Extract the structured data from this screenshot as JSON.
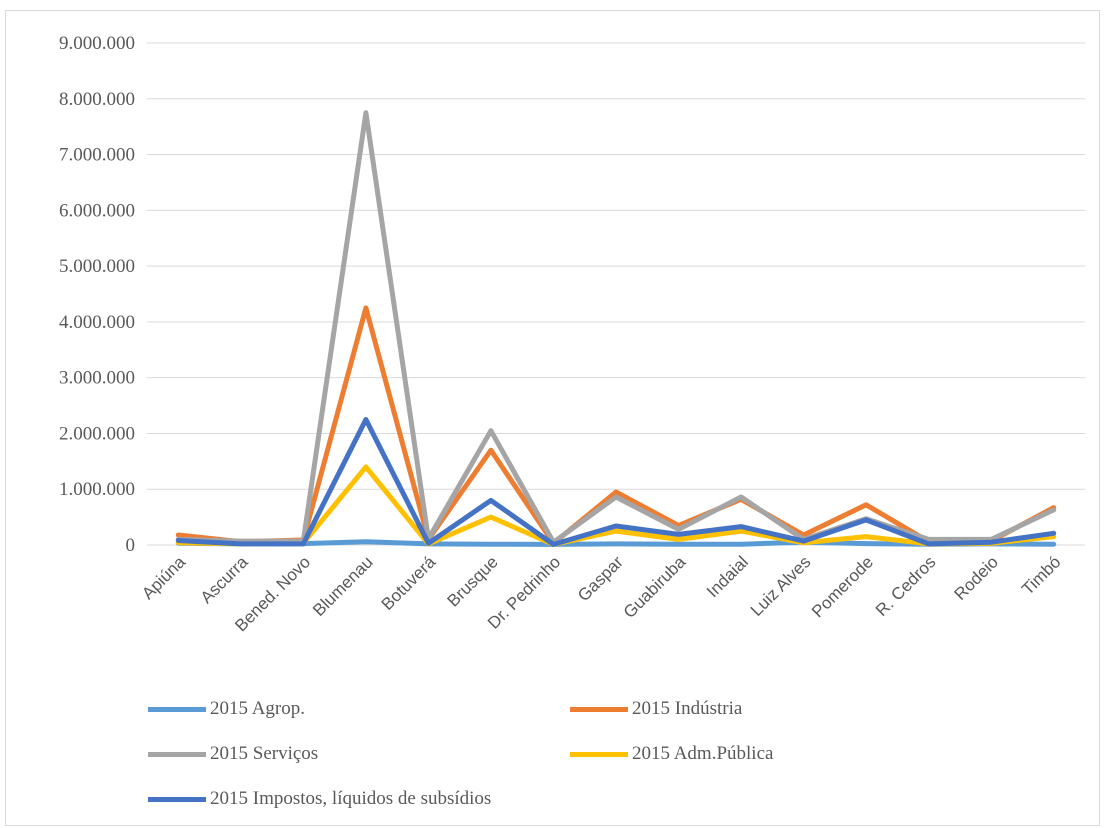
{
  "chart_data": {
    "type": "line",
    "categories": [
      "Apiúna",
      "Ascurra",
      "Bened. Novo",
      "Blumenau",
      "Botuverá",
      "Brusque",
      "Dr. Pedrinho",
      "Gaspar",
      "Guabiruba",
      "Indaial",
      "Luiz Alves",
      "Pomerode",
      "R. Cedros",
      "Rodeio",
      "Timbó"
    ],
    "ylim": [
      0,
      9000000
    ],
    "yticks": [
      0,
      1000000,
      2000000,
      3000000,
      4000000,
      5000000,
      6000000,
      7000000,
      8000000,
      9000000
    ],
    "ytick_labels": [
      "0",
      "1.000.000",
      "2.000.000",
      "3.000.000",
      "4.000.000",
      "5.000.000",
      "6.000.000",
      "7.000.000",
      "8.000.000",
      "9.000.000"
    ],
    "grid": true,
    "legend_position": "bottom",
    "series": [
      {
        "name": "2015 Agrop.",
        "color": "#5b9bd5",
        "values": [
          30000,
          20000,
          25000,
          60000,
          20000,
          15000,
          10000,
          20000,
          15000,
          15000,
          50000,
          25000,
          15000,
          20000,
          15000
        ]
      },
      {
        "name": "2015 Indústria",
        "color": "#ed7d31",
        "values": [
          180000,
          60000,
          90000,
          4250000,
          100000,
          1700000,
          30000,
          950000,
          350000,
          820000,
          180000,
          720000,
          60000,
          70000,
          670000
        ]
      },
      {
        "name": "2015 Serviços",
        "color": "#a5a5a5",
        "values": [
          100000,
          70000,
          70000,
          7750000,
          110000,
          2050000,
          50000,
          860000,
          280000,
          860000,
          100000,
          470000,
          100000,
          100000,
          630000
        ]
      },
      {
        "name": "2015 Adm.Pública",
        "color": "#ffc000",
        "values": [
          40000,
          20000,
          30000,
          1400000,
          20000,
          500000,
          10000,
          250000,
          100000,
          250000,
          40000,
          150000,
          20000,
          30000,
          150000
        ]
      },
      {
        "name": "2015 Impostos, líquidos de subsídios",
        "color": "#4472c4",
        "values": [
          80000,
          20000,
          20000,
          2250000,
          30000,
          800000,
          10000,
          340000,
          190000,
          330000,
          70000,
          450000,
          20000,
          50000,
          210000
        ]
      }
    ]
  }
}
